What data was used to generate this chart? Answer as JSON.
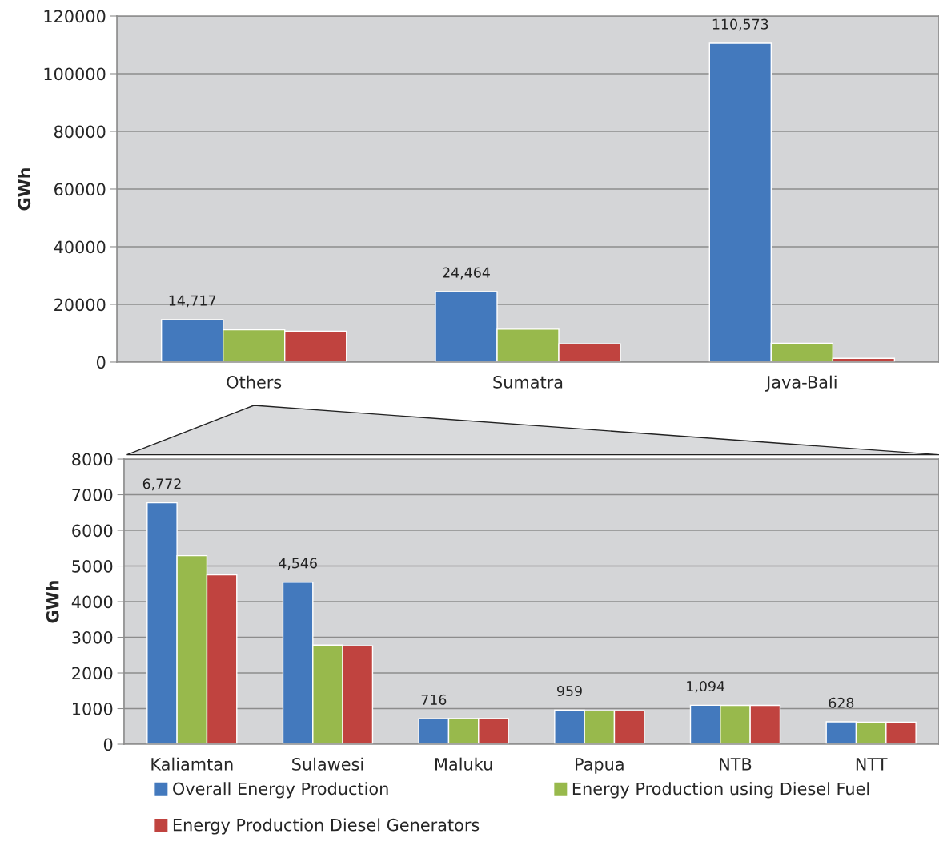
{
  "chart_data": [
    {
      "type": "bar",
      "ylabel": "GWh",
      "categories": [
        "Others",
        "Sumatra",
        "Java-Bali"
      ],
      "series": [
        {
          "color": "#4379bd",
          "values": [
            14717,
            24464,
            110573
          ],
          "value_labels": [
            "14,717",
            "24,464",
            "110,573"
          ]
        },
        {
          "color": "#98b94c",
          "values": [
            11200,
            11400,
            6500
          ]
        },
        {
          "color": "#c0433f",
          "values": [
            10700,
            6300,
            1300
          ]
        }
      ],
      "ylim": [
        0,
        120000
      ],
      "yticks": [
        0,
        20000,
        40000,
        60000,
        80000,
        100000,
        120000
      ],
      "grid": "y",
      "legend": false
    },
    {
      "type": "bar",
      "ylabel": "GWh",
      "categories": [
        "Kaliamtan",
        "Sulawesi",
        "Maluku",
        "Papua",
        "NTB",
        "NTT"
      ],
      "series": [
        {
          "name": "Overall Energy Production",
          "color": "#4379bd",
          "values": [
            6772,
            4546,
            716,
            959,
            1094,
            628
          ],
          "value_labels": [
            "6,772",
            "4,546",
            "716",
            "959",
            "1,094",
            "628"
          ]
        },
        {
          "name": "Energy Production using Diesel Fuel",
          "color": "#98b94c",
          "values": [
            5290,
            2780,
            720,
            940,
            1090,
            620
          ]
        },
        {
          "name": "Energy Production Diesel Generators",
          "color": "#c0433f",
          "values": [
            4750,
            2760,
            720,
            940,
            1090,
            620
          ]
        }
      ],
      "ylim": [
        0,
        8000
      ],
      "yticks": [
        0,
        1000,
        2000,
        3000,
        4000,
        5000,
        6000,
        7000,
        8000
      ],
      "grid": "y",
      "legend": "bottom"
    }
  ]
}
